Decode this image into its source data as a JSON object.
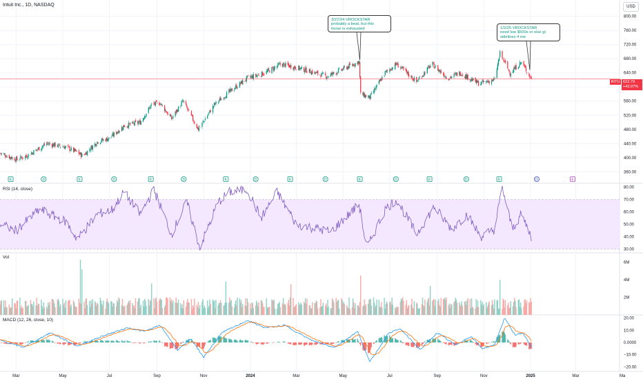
{
  "header": {
    "title": "Intuit Inc., 1D, NASDAQ",
    "currency": "USD"
  },
  "price_tag": {
    "symbol": "INTU",
    "price": "622.79",
    "change": "+43.97%"
  },
  "panes": {
    "rsi_label": "RSI (14, close)",
    "vol_label": "Vol",
    "macd_label": "MACD (12, 26, close, 10)"
  },
  "annotations": [
    {
      "text": "3/27/24 VROCKSTAR\nprobably a beat, but this\nhorse is exhausted",
      "date": "2024-05-23",
      "y": 676
    },
    {
      "text": "1/2/25 VROCKSTAR\nneed low $500s or else gl\nsidelines 4 me",
      "date": "2024-12-31",
      "y": 648
    }
  ],
  "colors": {
    "up": "#089981",
    "down": "#f23645",
    "up_vol": "#8fd0c5",
    "down_vol": "#f7a9a7",
    "rsi_line": "#7e57c2",
    "rsi_band": "#f3e8ff",
    "macd_line": "#2196f3",
    "signal_line": "#ff6d00",
    "price_line": "#f23645",
    "grid": "#f0f3fa",
    "axis_text": "#131722",
    "marker_line": "#3f51b5"
  },
  "chart_data": [
    {
      "type": "candlestick",
      "title": "Intuit Inc., 1D, NASDAQ",
      "x_ticks": [
        "Mar",
        "May",
        "Jul",
        "Sep",
        "Nov",
        "2024",
        "Mar",
        "May",
        "Jul",
        "Sep",
        "Nov",
        "2025",
        "Mar",
        "Ma"
      ],
      "x_tick_dates": [
        "2023-03-01",
        "2023-05-01",
        "2023-07-01",
        "2023-09-01",
        "2023-11-01",
        "2024-01-01",
        "2024-03-01",
        "2024-05-01",
        "2024-07-01",
        "2024-09-01",
        "2024-11-01",
        "2025-01-01",
        "2025-03-01",
        "2025-05-01"
      ],
      "xlim": [
        "2023-02-08",
        "2025-05-08"
      ],
      "y_ticks": [
        360,
        400,
        440,
        480,
        520,
        560,
        600,
        640,
        680,
        720,
        760,
        800
      ],
      "ylim": [
        343,
        815
      ],
      "last_price": 622.79,
      "close_path": [
        {
          "date": "2023-02-08",
          "close": 413
        },
        {
          "date": "2023-03-01",
          "close": 395
        },
        {
          "date": "2023-03-15",
          "close": 405
        },
        {
          "date": "2023-04-10",
          "close": 440
        },
        {
          "date": "2023-05-05",
          "close": 430
        },
        {
          "date": "2023-05-20",
          "close": 415
        },
        {
          "date": "2023-05-27",
          "close": 405
        },
        {
          "date": "2023-06-15",
          "close": 445
        },
        {
          "date": "2023-07-01",
          "close": 455
        },
        {
          "date": "2023-07-20",
          "close": 490
        },
        {
          "date": "2023-08-10",
          "close": 500
        },
        {
          "date": "2023-08-25",
          "close": 550
        },
        {
          "date": "2023-09-05",
          "close": 555
        },
        {
          "date": "2023-09-20",
          "close": 510
        },
        {
          "date": "2023-10-05",
          "close": 560
        },
        {
          "date": "2023-10-25",
          "close": 480
        },
        {
          "date": "2023-11-15",
          "close": 550
        },
        {
          "date": "2023-12-01",
          "close": 580
        },
        {
          "date": "2023-12-28",
          "close": 625
        },
        {
          "date": "2024-01-20",
          "close": 640
        },
        {
          "date": "2024-02-10",
          "close": 665
        },
        {
          "date": "2024-03-10",
          "close": 650
        },
        {
          "date": "2024-04-10",
          "close": 630
        },
        {
          "date": "2024-05-22",
          "close": 672
        },
        {
          "date": "2024-05-24",
          "close": 580
        },
        {
          "date": "2024-06-05",
          "close": 570
        },
        {
          "date": "2024-06-25",
          "close": 640
        },
        {
          "date": "2024-07-10",
          "close": 665
        },
        {
          "date": "2024-08-05",
          "close": 615
        },
        {
          "date": "2024-08-25",
          "close": 665
        },
        {
          "date": "2024-09-15",
          "close": 625
        },
        {
          "date": "2024-10-01",
          "close": 640
        },
        {
          "date": "2024-10-25",
          "close": 610
        },
        {
          "date": "2024-11-15",
          "close": 620
        },
        {
          "date": "2024-11-22",
          "close": 695
        },
        {
          "date": "2024-12-05",
          "close": 640
        },
        {
          "date": "2024-12-20",
          "close": 670
        },
        {
          "date": "2025-01-02",
          "close": 622.79
        }
      ]
    },
    {
      "type": "line",
      "title": "RSI (14, close)",
      "y_ticks": [
        30,
        40,
        50,
        60,
        70,
        80
      ],
      "ylim": [
        28,
        82
      ],
      "band": [
        30,
        70
      ],
      "path": [
        {
          "date": "2023-02-08",
          "value": 50
        },
        {
          "date": "2023-03-01",
          "value": 45
        },
        {
          "date": "2023-04-01",
          "value": 62
        },
        {
          "date": "2023-05-05",
          "value": 52
        },
        {
          "date": "2023-05-20",
          "value": 38
        },
        {
          "date": "2023-06-15",
          "value": 58
        },
        {
          "date": "2023-07-05",
          "value": 62
        },
        {
          "date": "2023-07-20",
          "value": 76
        },
        {
          "date": "2023-08-10",
          "value": 58
        },
        {
          "date": "2023-08-28",
          "value": 78
        },
        {
          "date": "2023-09-20",
          "value": 42
        },
        {
          "date": "2023-10-10",
          "value": 68
        },
        {
          "date": "2023-10-27",
          "value": 31
        },
        {
          "date": "2023-11-20",
          "value": 68
        },
        {
          "date": "2023-12-05",
          "value": 76
        },
        {
          "date": "2023-12-28",
          "value": 78
        },
        {
          "date": "2024-01-15",
          "value": 55
        },
        {
          "date": "2024-02-05",
          "value": 76
        },
        {
          "date": "2024-03-01",
          "value": 50
        },
        {
          "date": "2024-04-15",
          "value": 44
        },
        {
          "date": "2024-05-22",
          "value": 66
        },
        {
          "date": "2024-06-01",
          "value": 30
        },
        {
          "date": "2024-06-25",
          "value": 62
        },
        {
          "date": "2024-07-10",
          "value": 70
        },
        {
          "date": "2024-08-05",
          "value": 42
        },
        {
          "date": "2024-08-28",
          "value": 64
        },
        {
          "date": "2024-09-20",
          "value": 46
        },
        {
          "date": "2024-10-10",
          "value": 58
        },
        {
          "date": "2024-10-28",
          "value": 40
        },
        {
          "date": "2024-11-15",
          "value": 46
        },
        {
          "date": "2024-11-25",
          "value": 80
        },
        {
          "date": "2024-12-08",
          "value": 46
        },
        {
          "date": "2024-12-20",
          "value": 58
        },
        {
          "date": "2025-01-02",
          "value": 40
        }
      ]
    },
    {
      "type": "bar",
      "title": "Vol",
      "y_ticks": [
        "2M",
        "4M",
        "6M"
      ],
      "ylim": [
        0,
        7000000
      ],
      "baseline_volume": 1500000,
      "spikes": [
        {
          "date": "2023-05-24",
          "volume": 6300000
        },
        {
          "date": "2023-05-26",
          "volume": 5200000
        },
        {
          "date": "2023-08-25",
          "volume": 3600000
        },
        {
          "date": "2023-11-30",
          "volume": 3800000
        },
        {
          "date": "2024-02-23",
          "volume": 3500000
        },
        {
          "date": "2024-05-24",
          "volume": 4500000
        },
        {
          "date": "2024-08-23",
          "volume": 3300000
        },
        {
          "date": "2024-11-22",
          "volume": 4000000
        }
      ]
    },
    {
      "type": "line",
      "title": "MACD (12, 26, close, 10)",
      "y_ticks": [
        "20.00",
        "10.00",
        "0.0000",
        "−10.00",
        "−20.00"
      ],
      "ylim": [
        -22,
        22
      ],
      "series": [
        "MACD",
        "Signal",
        "Histogram"
      ],
      "macd_path": [
        {
          "date": "2023-02-08",
          "value": 2
        },
        {
          "date": "2023-03-10",
          "value": -4
        },
        {
          "date": "2023-04-15",
          "value": 8
        },
        {
          "date": "2023-05-20",
          "value": -3
        },
        {
          "date": "2023-06-25",
          "value": 6
        },
        {
          "date": "2023-07-25",
          "value": 12
        },
        {
          "date": "2023-08-15",
          "value": 9
        },
        {
          "date": "2023-09-05",
          "value": 14
        },
        {
          "date": "2023-09-28",
          "value": -6
        },
        {
          "date": "2023-10-15",
          "value": 3
        },
        {
          "date": "2023-11-01",
          "value": -12
        },
        {
          "date": "2023-11-25",
          "value": 8
        },
        {
          "date": "2023-12-28",
          "value": 18
        },
        {
          "date": "2024-01-20",
          "value": 12
        },
        {
          "date": "2024-02-15",
          "value": 14
        },
        {
          "date": "2024-03-20",
          "value": 2
        },
        {
          "date": "2024-04-20",
          "value": -4
        },
        {
          "date": "2024-05-20",
          "value": 9
        },
        {
          "date": "2024-06-05",
          "value": -16
        },
        {
          "date": "2024-06-30",
          "value": 8
        },
        {
          "date": "2024-07-15",
          "value": 11
        },
        {
          "date": "2024-08-10",
          "value": -6
        },
        {
          "date": "2024-09-01",
          "value": 8
        },
        {
          "date": "2024-09-25",
          "value": -2
        },
        {
          "date": "2024-10-15",
          "value": 5
        },
        {
          "date": "2024-10-30",
          "value": -5
        },
        {
          "date": "2024-11-15",
          "value": -2
        },
        {
          "date": "2024-11-28",
          "value": 20
        },
        {
          "date": "2024-12-12",
          "value": 6
        },
        {
          "date": "2024-12-22",
          "value": 8
        },
        {
          "date": "2025-01-02",
          "value": -4
        }
      ]
    }
  ],
  "event_markers": [
    {
      "kind": "E",
      "date": "2023-02-22"
    },
    {
      "kind": "D",
      "date": "2023-04-06"
    },
    {
      "kind": "E",
      "date": "2023-05-23"
    },
    {
      "kind": "D",
      "date": "2023-07-07"
    },
    {
      "kind": "E",
      "date": "2023-08-24"
    },
    {
      "kind": "D",
      "date": "2023-10-06"
    },
    {
      "kind": "E",
      "date": "2023-11-30"
    },
    {
      "kind": "D",
      "date": "2024-01-08"
    },
    {
      "kind": "E",
      "date": "2024-02-22"
    },
    {
      "kind": "D",
      "date": "2024-04-08"
    },
    {
      "kind": "E",
      "date": "2024-05-23"
    },
    {
      "kind": "D",
      "date": "2024-07-09"
    },
    {
      "kind": "E",
      "date": "2024-08-22"
    },
    {
      "kind": "D",
      "date": "2024-10-09"
    },
    {
      "kind": "E",
      "date": "2024-11-21"
    },
    {
      "kind": "D",
      "date": "2025-01-09"
    },
    {
      "kind": "E",
      "date": "2025-02-25"
    }
  ]
}
